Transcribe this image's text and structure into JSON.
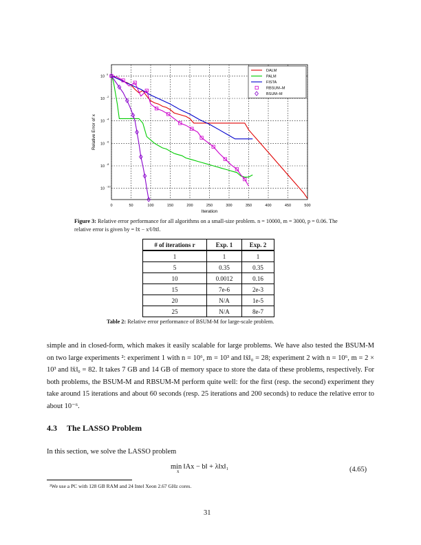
{
  "figure": {
    "chart_data": {
      "type": "line",
      "xlabel": "Iteration",
      "ylabel": "Relative Error of x",
      "xlim": [
        0,
        500
      ],
      "ylim_log10": [
        -11,
        1
      ],
      "yscale": "log",
      "grid": true,
      "legend_position": "top-right",
      "x_ticks": [
        "0",
        "50",
        "100",
        "150",
        "200",
        "250",
        "300",
        "350",
        "400",
        "450",
        "500"
      ],
      "y_ticks": [
        {
          "mantissa": "10",
          "exp": "0"
        },
        {
          "mantissa": "10",
          "exp": "-2"
        },
        {
          "mantissa": "10",
          "exp": "-4"
        },
        {
          "mantissa": "10",
          "exp": "-6"
        },
        {
          "mantissa": "10",
          "exp": "-8"
        },
        {
          "mantissa": "10",
          "exp": "-10"
        }
      ],
      "series": [
        {
          "name": "DALM",
          "color": "#e00000",
          "style": "line",
          "x": [
            0,
            10,
            20,
            30,
            40,
            50,
            60,
            70,
            80,
            90,
            100,
            110,
            120,
            130,
            140,
            150,
            160,
            170,
            180,
            190,
            200,
            210,
            220,
            230,
            240,
            250,
            260,
            270,
            280,
            290,
            300,
            310,
            320,
            330,
            340,
            350,
            360,
            370,
            380,
            390,
            400,
            410,
            420,
            430,
            440,
            450,
            460,
            470,
            480,
            490,
            500
          ],
          "y_log10": [
            0,
            -0.15,
            -0.3,
            -0.5,
            -0.6,
            -0.8,
            -1.2,
            -1.5,
            -1.3,
            -1.8,
            -2.2,
            -2.4,
            -2.5,
            -2.7,
            -2.8,
            -3.0,
            -3.3,
            -3.4,
            -3.5,
            -3.6,
            -3.8,
            -4.2,
            -4.2,
            -4.2,
            -4.2,
            -4.2,
            -4.2,
            -4.2,
            -4.2,
            -4.2,
            -4.2,
            -4.2,
            -4.2,
            -4.2,
            -4.2,
            -4.8,
            -5.2,
            -5.6,
            -6.0,
            -6.4,
            -6.8,
            -7.2,
            -7.6,
            -8.0,
            -8.4,
            -8.8,
            -9.2,
            -9.6,
            -10.0,
            -10.4,
            -10.9
          ]
        },
        {
          "name": "PALM",
          "color": "#00cc00",
          "style": "line",
          "x": [
            0,
            5,
            10,
            15,
            20,
            30,
            40,
            50,
            60,
            70,
            80,
            90,
            100,
            110,
            120,
            130,
            140,
            150,
            160,
            170,
            180,
            190,
            200,
            210,
            220,
            230,
            240,
            250,
            260,
            270,
            280,
            290,
            300,
            310,
            320,
            330,
            340,
            350,
            360
          ],
          "y_log10": [
            0,
            -0.5,
            -1.5,
            -2.5,
            -3.8,
            -3.8,
            -3.8,
            -3.8,
            -3.8,
            -3.8,
            -4.2,
            -5.4,
            -5.7,
            -6.0,
            -6.2,
            -6.4,
            -6.5,
            -6.7,
            -6.9,
            -7.0,
            -7.1,
            -7.3,
            -7.4,
            -7.5,
            -7.6,
            -7.7,
            -7.8,
            -7.9,
            -8.0,
            -8.1,
            -8.2,
            -8.3,
            -8.4,
            -8.5,
            -8.6,
            -8.9,
            -9.0,
            -9.0,
            -8.8
          ]
        },
        {
          "name": "FISTA",
          "color": "#0000cc",
          "style": "line",
          "x": [
            0,
            25,
            50,
            75,
            100,
            125,
            150,
            175,
            200,
            225,
            250,
            275,
            300,
            315,
            330,
            345,
            360
          ],
          "y_log10": [
            0,
            -0.4,
            -0.8,
            -1.2,
            -1.7,
            -2.1,
            -2.5,
            -3.0,
            -3.4,
            -3.9,
            -4.3,
            -4.8,
            -5.3,
            -5.6,
            -5.6,
            -5.6,
            -5.6
          ]
        },
        {
          "name": "RBSUM–M",
          "color": "#cc00cc",
          "style": "line+square",
          "x": [
            0,
            15,
            30,
            45,
            60,
            75,
            90,
            100,
            115,
            130,
            145,
            160,
            175,
            190,
            205,
            220,
            230,
            245,
            260,
            275,
            290,
            305,
            320,
            330,
            340,
            350
          ],
          "y_log10": [
            0,
            -0.1,
            -0.4,
            -0.9,
            -0.6,
            -1.8,
            -1.3,
            -2.5,
            -2.9,
            -3.1,
            -3.4,
            -3.8,
            -4.2,
            -4.4,
            -4.7,
            -5.0,
            -5.5,
            -5.9,
            -6.3,
            -6.9,
            -7.4,
            -7.9,
            -8.3,
            -8.8,
            -9.2,
            -9.8
          ]
        },
        {
          "name": "BSUM–M",
          "color": "#8800cc",
          "style": "line+diamond",
          "x": [
            0,
            10,
            20,
            30,
            40,
            50,
            55,
            60,
            65,
            70,
            75,
            80,
            85,
            90,
            95
          ],
          "y_log10": [
            0,
            -0.5,
            -1.0,
            -1.5,
            -2.2,
            -3.0,
            -3.5,
            -4.0,
            -5.0,
            -6.0,
            -7.2,
            -8.0,
            -8.9,
            -10.0,
            -11.0
          ]
        }
      ]
    },
    "caption_label": "Figure 3:",
    "caption_text": "Relative error performance for all algorithms on a small-size problem. n = 10000, m = 3000, p = 0.06. The relative error is given by = ‖x̄ − xʳ‖/‖x̄‖."
  },
  "table": {
    "headers": [
      "# of iterations r",
      "Exp. 1",
      "Exp. 2"
    ],
    "rows": [
      [
        "1",
        "1",
        "1"
      ],
      [
        "5",
        "0.35",
        "0.35"
      ],
      [
        "10",
        "0.0012",
        "0.16"
      ],
      [
        "15",
        "7e-6",
        "2e-3"
      ],
      [
        "20",
        "N/A",
        "1e-5"
      ],
      [
        "25",
        "N/A",
        "8e-7"
      ]
    ],
    "caption_label": "Table 2:",
    "caption_text": "Relative error performance of BSUM-M for large-scale problem."
  },
  "body": {
    "para1": "simple and in closed-form, which makes it easily scalable for large problems. We have also tested the BSUM-M on two large experiments ²: experiment 1 with n = 10⁶, m = 10³ and ‖x̄‖₀ = 28; experiment 2 with n = 10⁶, m = 2 × 10³ and ‖x̄‖₀ = 82. It takes 7 GB and 14 GB of memory space to store the data of these problems, respectively. For both problems, the BSUM-M and RBSUM-M perform quite well: for the first (resp. the second) experiment they take around 15 iterations and about 60 seconds (resp. 25 iterations and 200 seconds) to reduce the relative error to about 10⁻⁶.",
    "section_number": "4.3",
    "section_title": "The LASSO Problem",
    "para2": "In this section, we solve the LASSO problem",
    "equation": "min ‖Ax − b‖ + λ‖x‖₁",
    "equation_sub": "x",
    "equation_number": "(4.65)",
    "footnote": "²We use a PC with 128 GB RAM and 24 Intel Xeon 2.67 GHz cores.",
    "page_number": "31"
  }
}
